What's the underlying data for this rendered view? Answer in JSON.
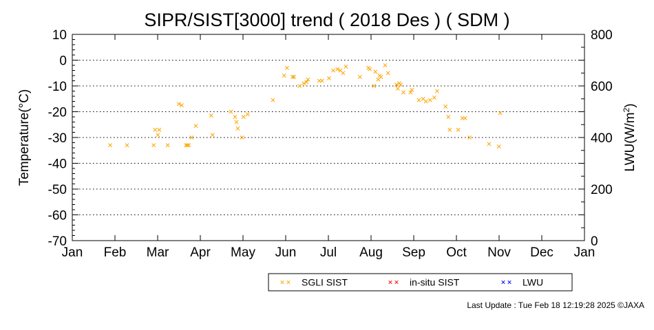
{
  "chart_data": {
    "type": "scatter",
    "title": "SIPR/SIST[3000] trend ( 2018 Des ) ( SDM )",
    "ylabel": "Temperature(°C)",
    "y2label_main": "LWU(W/m",
    "y2label_sup": "2",
    "y2label_end": ")",
    "ylim": [
      -70,
      10
    ],
    "y2lim": [
      0,
      800
    ],
    "y_ticks": [
      "10",
      "0",
      "-10",
      "-20",
      "-30",
      "-40",
      "-50",
      "-60",
      "-70"
    ],
    "y2_ticks": [
      "800",
      "600",
      "400",
      "200",
      "0"
    ],
    "x_ticks": [
      "Jan",
      "Feb",
      "Mar",
      "Apr",
      "May",
      "Jun",
      "Jul",
      "Aug",
      "Sep",
      "Oct",
      "Nov",
      "Dec",
      "Jan"
    ],
    "grid": "horizontal dotted",
    "legend_position": "bottom-center",
    "series": [
      {
        "name": "SGLI SIST",
        "color": "#ffa500",
        "marker": "x",
        "points": [
          [
            "01-28",
            -33
          ],
          [
            "02-09",
            -33
          ],
          [
            "02-28",
            -33
          ],
          [
            "03-01",
            -27
          ],
          [
            "03-03",
            -29
          ],
          [
            "03-04",
            -27
          ],
          [
            "03-10",
            -33
          ],
          [
            "03-18",
            -17
          ],
          [
            "03-20",
            -17.5
          ],
          [
            "03-23",
            -33
          ],
          [
            "03-24",
            -33
          ],
          [
            "03-25",
            -33
          ],
          [
            "03-27",
            -30
          ],
          [
            "03-30",
            -25.5
          ],
          [
            "04-10",
            -21.5
          ],
          [
            "04-11",
            -29
          ],
          [
            "04-24",
            -20
          ],
          [
            "04-27",
            -22
          ],
          [
            "04-28",
            -24
          ],
          [
            "04-29",
            -26.5
          ],
          [
            "05-02",
            -30
          ],
          [
            "05-03",
            -22
          ],
          [
            "05-06",
            -21
          ],
          [
            "05-24",
            -15.5
          ],
          [
            "06-01",
            -6
          ],
          [
            "06-03",
            -3
          ],
          [
            "06-07",
            -6.5
          ],
          [
            "06-08",
            -6.5
          ],
          [
            "06-12",
            -10
          ],
          [
            "06-15",
            -9
          ],
          [
            "06-17",
            -8.5
          ],
          [
            "06-18",
            -7.5
          ],
          [
            "06-26",
            -8
          ],
          [
            "06-28",
            -8
          ],
          [
            "07-03",
            -7
          ],
          [
            "07-06",
            -4
          ],
          [
            "07-09",
            -3.5
          ],
          [
            "07-11",
            -4
          ],
          [
            "07-13",
            -5
          ],
          [
            "07-15",
            -2.5
          ],
          [
            "07-25",
            -6.5
          ],
          [
            "07-31",
            -3
          ],
          [
            "08-01",
            -3.5
          ],
          [
            "08-04",
            -10
          ],
          [
            "08-05",
            -4.5
          ],
          [
            "08-07",
            -7.5
          ],
          [
            "08-08",
            -6
          ],
          [
            "08-09",
            -6.5
          ],
          [
            "08-12",
            -2
          ],
          [
            "08-14",
            -5
          ],
          [
            "08-20",
            -9.5
          ],
          [
            "08-21",
            -11
          ],
          [
            "08-22",
            -9
          ],
          [
            "08-23",
            -9.5
          ],
          [
            "08-25",
            -12.5
          ],
          [
            "08-30",
            -12.5
          ],
          [
            "08-31",
            -11.5
          ],
          [
            "09-05",
            -15.5
          ],
          [
            "09-08",
            -15
          ],
          [
            "09-10",
            -16
          ],
          [
            "09-13",
            -15.5
          ],
          [
            "09-16",
            -14.5
          ],
          [
            "09-18",
            -12
          ],
          [
            "09-24",
            -18
          ],
          [
            "09-26",
            -22
          ],
          [
            "09-27",
            -27
          ],
          [
            "10-03",
            -27
          ],
          [
            "10-06",
            -22.5
          ],
          [
            "10-08",
            -22.5
          ],
          [
            "10-11",
            -30
          ],
          [
            "10-25",
            -32.5
          ],
          [
            "11-01",
            -33.5
          ],
          [
            "11-02",
            -20.5
          ]
        ]
      },
      {
        "name": "in-situ SIST",
        "color": "#ff0000",
        "marker": "x",
        "points": []
      },
      {
        "name": "LWU",
        "color": "#0000ff",
        "marker": "x",
        "points": []
      }
    ]
  },
  "footer": "Last Update : Tue Feb 18 12:19:28 2025  ©JAXA"
}
